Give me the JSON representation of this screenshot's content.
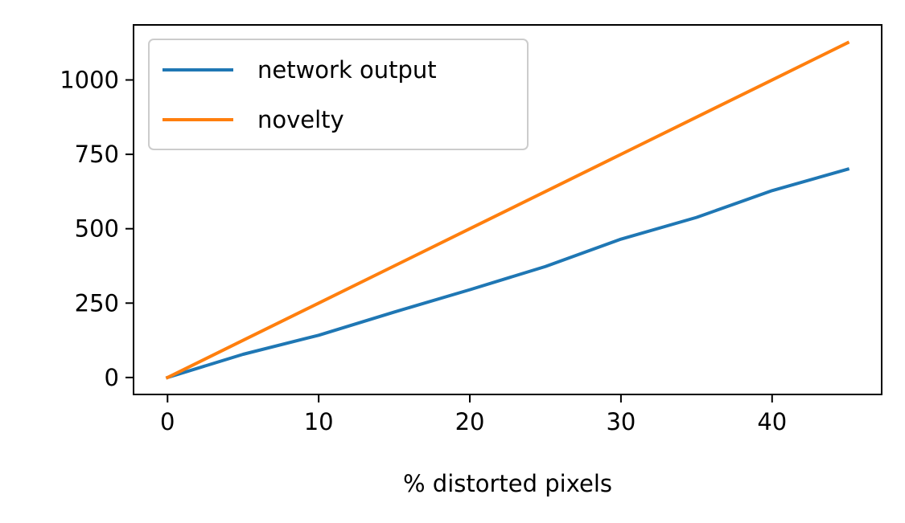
{
  "chart_data": {
    "type": "line",
    "title": "",
    "xlabel": "% distorted pixels",
    "ylabel": "",
    "xlim": [
      -2.25,
      47.25
    ],
    "ylim": [
      -57,
      1185
    ],
    "xticks": [
      0,
      10,
      20,
      30,
      40
    ],
    "yticks": [
      0,
      250,
      500,
      750,
      1000
    ],
    "grid": false,
    "legend": "top-left",
    "x": [
      0,
      5,
      10,
      15,
      20,
      25,
      30,
      35,
      40,
      45
    ],
    "series": [
      {
        "name": "network output",
        "color": "#1f77b4",
        "values": [
          0,
          78,
          142,
          220,
          295,
          373,
          465,
          538,
          628,
          700
        ]
      },
      {
        "name": "novelty",
        "color": "#ff7f0e",
        "values": [
          0,
          125,
          250,
          375,
          500,
          625,
          750,
          875,
          1000,
          1125
        ]
      }
    ]
  }
}
